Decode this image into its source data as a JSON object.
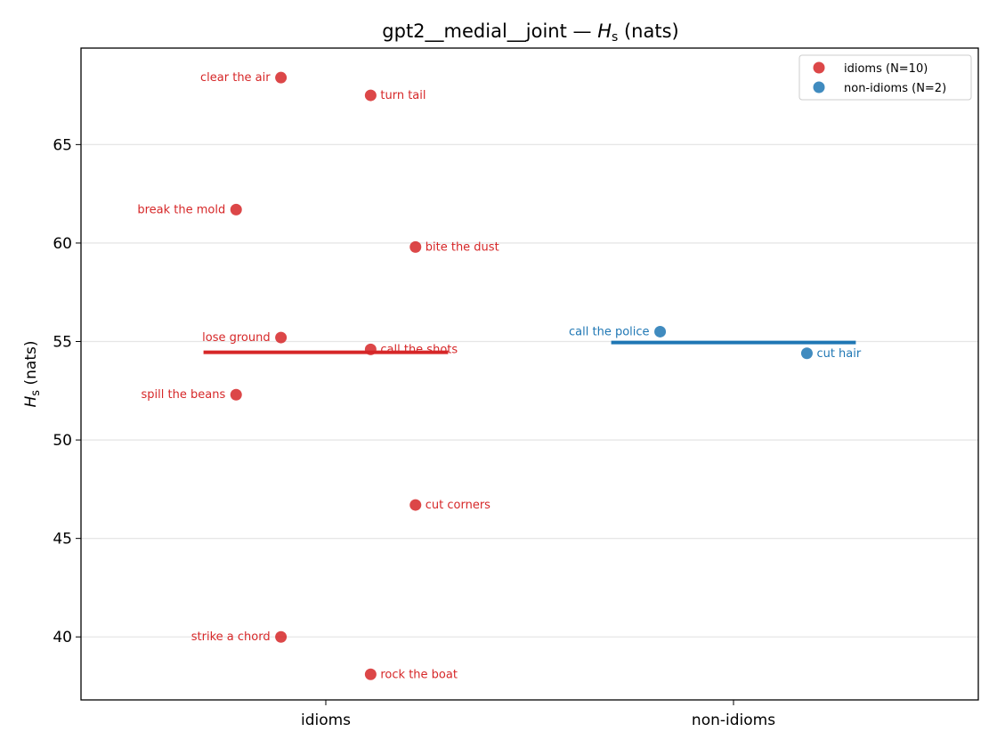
{
  "chart_data": {
    "type": "scatter",
    "title": "gpt2__medial__joint — H_s (nats)",
    "title_parts": {
      "prefix": "gpt2__medial__joint — ",
      "symbol": "H",
      "subscript": "s",
      "suffix": " (nats)"
    },
    "ylabel_parts": {
      "symbol": "H",
      "subscript": "s",
      "suffix": " (nats)"
    },
    "categories": [
      "idioms",
      "non-idioms"
    ],
    "ylim": [
      36.8,
      69.9
    ],
    "yticks": [
      40,
      45,
      50,
      55,
      60,
      65
    ],
    "grid": "horizontal",
    "legend_position": "top-right",
    "series": [
      {
        "name": "idioms (N=10)",
        "category": "idioms",
        "color": "#d62728",
        "mean": 54.45,
        "points": [
          {
            "label": "clear the air",
            "y": 68.4,
            "offset": -0.11,
            "label_side": "left"
          },
          {
            "label": "turn tail",
            "y": 67.5,
            "offset": 0.11,
            "label_side": "right"
          },
          {
            "label": "break the mold",
            "y": 61.7,
            "offset": -0.22,
            "label_side": "left"
          },
          {
            "label": "bite the dust",
            "y": 59.8,
            "offset": 0.22,
            "label_side": "right"
          },
          {
            "label": "lose ground",
            "y": 55.2,
            "offset": -0.11,
            "label_side": "left"
          },
          {
            "label": "call the shots",
            "y": 54.6,
            "offset": 0.11,
            "label_side": "right"
          },
          {
            "label": "spill the beans",
            "y": 52.3,
            "offset": -0.22,
            "label_side": "left"
          },
          {
            "label": "cut corners",
            "y": 46.7,
            "offset": 0.22,
            "label_side": "right"
          },
          {
            "label": "strike a chord",
            "y": 40.0,
            "offset": -0.11,
            "label_side": "left"
          },
          {
            "label": "rock the boat",
            "y": 38.1,
            "offset": 0.11,
            "label_side": "right"
          }
        ]
      },
      {
        "name": "non-idioms (N=2)",
        "category": "non-idioms",
        "color": "#1f77b4",
        "mean": 54.95,
        "points": [
          {
            "label": "call the police",
            "y": 55.5,
            "offset": -0.18,
            "label_side": "left"
          },
          {
            "label": "cut hair",
            "y": 54.4,
            "offset": 0.18,
            "label_side": "right"
          }
        ]
      }
    ]
  }
}
